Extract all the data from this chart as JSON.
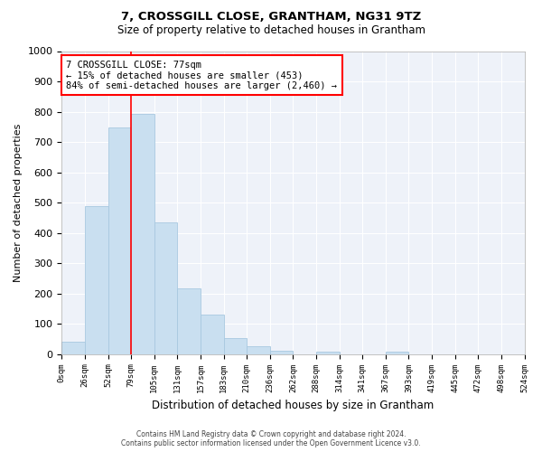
{
  "title": "7, CROSSGILL CLOSE, GRANTHAM, NG31 9TZ",
  "subtitle": "Size of property relative to detached houses in Grantham",
  "xlabel": "Distribution of detached houses by size in Grantham",
  "ylabel": "Number of detached properties",
  "bar_color": "#c9dff0",
  "bar_edge_color": "#a8c8e0",
  "background_color": "#eef2f9",
  "grid_color": "#ffffff",
  "categories": [
    "0sqm",
    "26sqm",
    "52sqm",
    "79sqm",
    "105sqm",
    "131sqm",
    "157sqm",
    "183sqm",
    "210sqm",
    "236sqm",
    "262sqm",
    "288sqm",
    "314sqm",
    "341sqm",
    "367sqm",
    "393sqm",
    "419sqm",
    "445sqm",
    "472sqm",
    "498sqm",
    "524sqm"
  ],
  "bar_values": [
    42,
    487,
    748,
    792,
    435,
    218,
    130,
    52,
    27,
    12,
    0,
    7,
    0,
    0,
    7,
    0,
    0,
    0,
    0,
    0
  ],
  "ylim": [
    0,
    1000
  ],
  "yticks": [
    0,
    100,
    200,
    300,
    400,
    500,
    600,
    700,
    800,
    900,
    1000
  ],
  "annotation_title": "7 CROSSGILL CLOSE: 77sqm",
  "annotation_line1": "← 15% of detached houses are smaller (453)",
  "annotation_line2": "84% of semi-detached houses are larger (2,460) →",
  "footer_line1": "Contains HM Land Registry data © Crown copyright and database right 2024.",
  "footer_line2": "Contains public sector information licensed under the Open Government Licence v3.0."
}
